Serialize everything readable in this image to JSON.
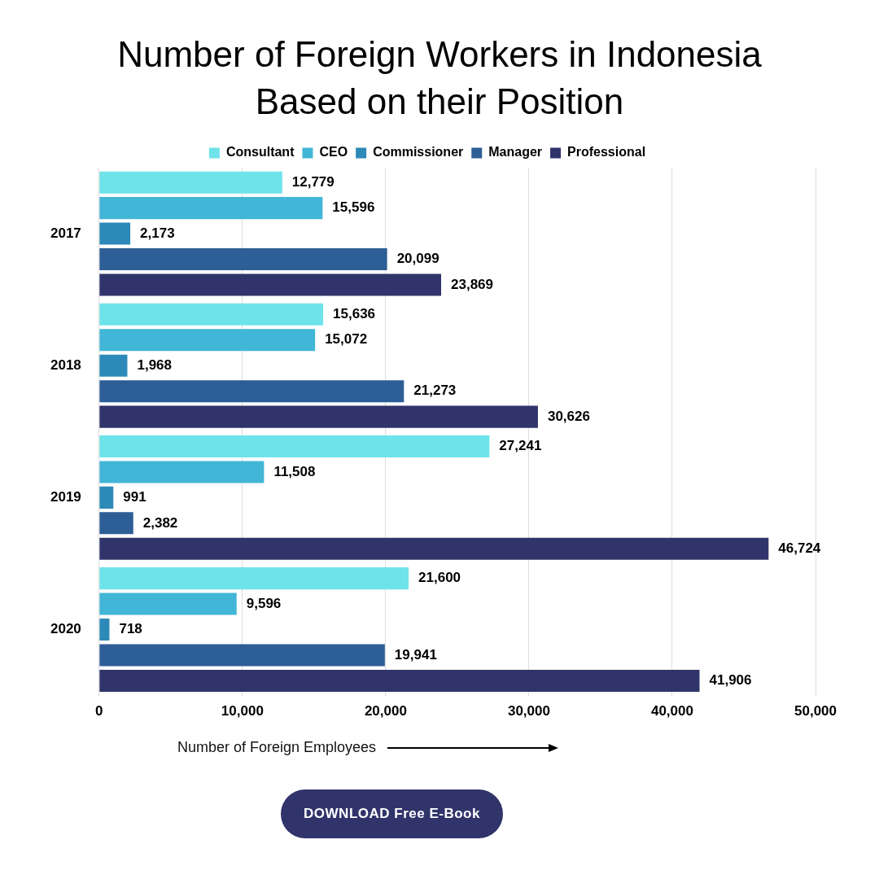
{
  "chart_data": {
    "type": "bar",
    "orientation": "horizontal",
    "title": "Number of Foreign Workers in Indonesia Based on their Position",
    "xlabel": "Number of Foreign Employees",
    "categories": [
      "2017",
      "2018",
      "2019",
      "2020"
    ],
    "series": [
      {
        "name": "Consultant",
        "color": "#6ee3e9",
        "values": [
          12779,
          15636,
          27241,
          21600
        ],
        "value_labels": [
          "12,779",
          "15,636",
          "27,241",
          "21,600"
        ]
      },
      {
        "name": "CEO",
        "color": "#42b6d6",
        "values": [
          15596,
          15072,
          11508,
          9596
        ],
        "value_labels": [
          "15,596",
          "15,072",
          "11,508",
          "9,596"
        ]
      },
      {
        "name": "Commissioner",
        "color": "#2d8ab8",
        "values": [
          2173,
          1968,
          991,
          718
        ],
        "value_labels": [
          "2,173",
          "1,968",
          "991",
          "718"
        ]
      },
      {
        "name": "Manager",
        "color": "#2e5e96",
        "values": [
          20099,
          21273,
          2382,
          19941
        ],
        "value_labels": [
          "20,099",
          "21,273",
          "2,382",
          "19,941"
        ]
      },
      {
        "name": "Professional",
        "color": "#30346a",
        "values": [
          23869,
          30626,
          46724,
          41906
        ],
        "value_labels": [
          "23,869",
          "30,626",
          "46,724",
          "41,906"
        ]
      }
    ],
    "xlim": [
      0,
      50000
    ],
    "xticks": [
      0,
      {
        "value": 10000,
        "label": "10,000"
      },
      {
        "value": 20000,
        "label": "20,000"
      },
      {
        "value": 30000,
        "label": "30,000"
      },
      {
        "value": 40000,
        "label": "40,000"
      },
      {
        "value": 50000,
        "label": "50,000"
      }
    ],
    "grid": "x",
    "legend": "top",
    "annotations": [
      "DOWNLOAD Free E-Book"
    ]
  }
}
